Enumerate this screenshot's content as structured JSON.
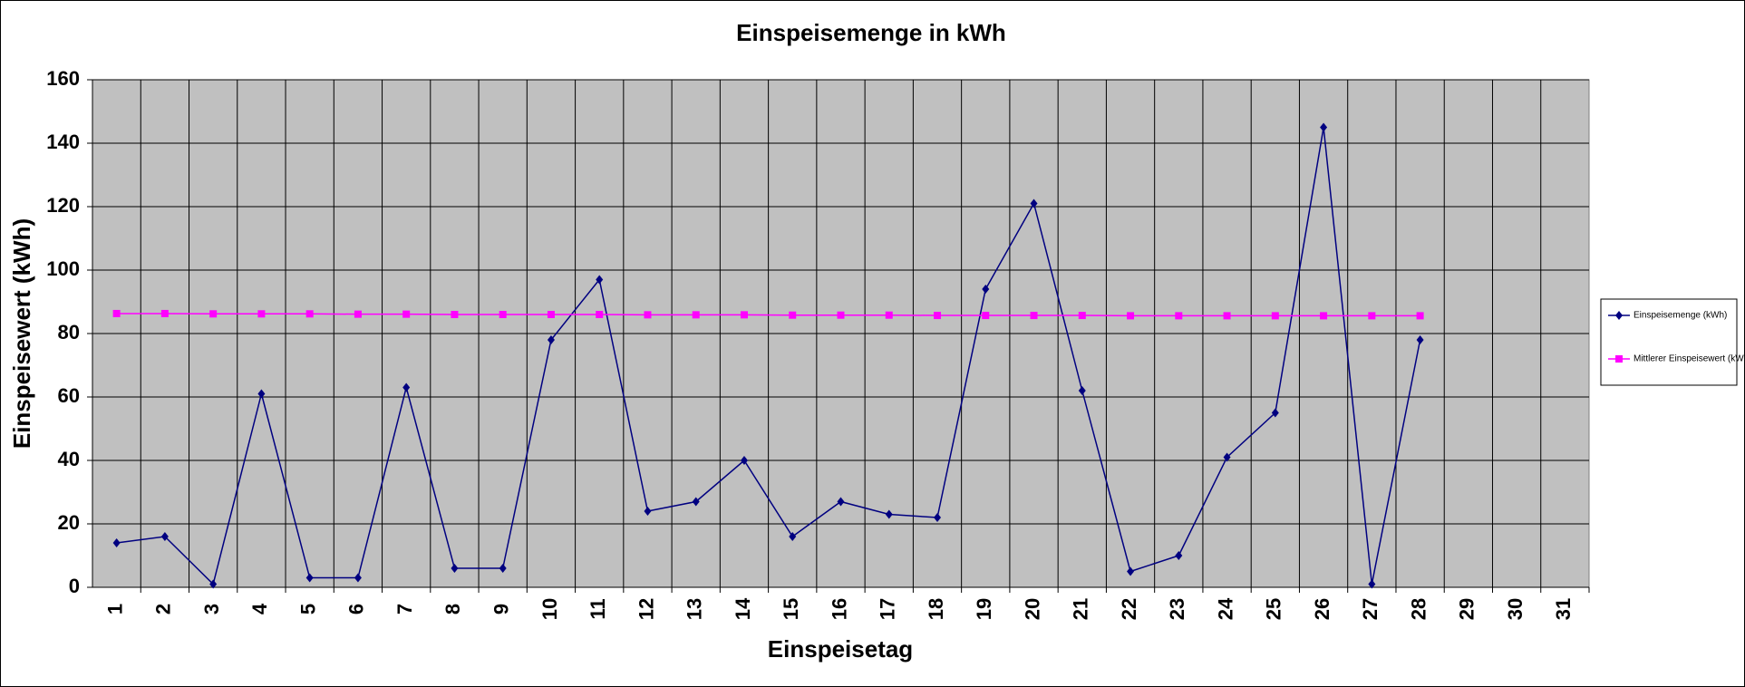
{
  "chart_data": {
    "type": "line",
    "title": "Einspeisemenge in kWh",
    "x_label": "Einspeisetag",
    "y_label": "Einspeisewert  (kWh)",
    "categories": [
      "1",
      "2",
      "3",
      "4",
      "5",
      "6",
      "7",
      "8",
      "9",
      "10",
      "11",
      "12",
      "13",
      "14",
      "15",
      "16",
      "17",
      "18",
      "19",
      "20",
      "21",
      "22",
      "23",
      "24",
      "25",
      "26",
      "27",
      "28",
      "29",
      "30",
      "31"
    ],
    "series": [
      {
        "name": "Einspeisemenge (kWh)",
        "color": "#000080",
        "marker": "diamond",
        "values": [
          14,
          16,
          1,
          61,
          3,
          3,
          63,
          6,
          6,
          78,
          97,
          24,
          27,
          40,
          16,
          27,
          23,
          22,
          94,
          121,
          62,
          5,
          10,
          41,
          55,
          145,
          1,
          78,
          null,
          null,
          null
        ]
      },
      {
        "name": "Mittlerer Einspeisewert (kWh)",
        "color": "#ff00ff",
        "marker": "square",
        "values": [
          86.3,
          86.3,
          86.2,
          86.2,
          86.2,
          86.1,
          86.1,
          86.0,
          86.0,
          86.0,
          86.0,
          85.9,
          85.9,
          85.9,
          85.8,
          85.8,
          85.8,
          85.7,
          85.7,
          85.7,
          85.7,
          85.6,
          85.6,
          85.6,
          85.6,
          85.6,
          85.6,
          85.6,
          null,
          null,
          null
        ]
      }
    ],
    "ylim": [
      0,
      160
    ],
    "yticks": [
      0,
      20,
      40,
      60,
      80,
      100,
      120,
      140,
      160
    ],
    "grid": true,
    "legend": "right"
  }
}
